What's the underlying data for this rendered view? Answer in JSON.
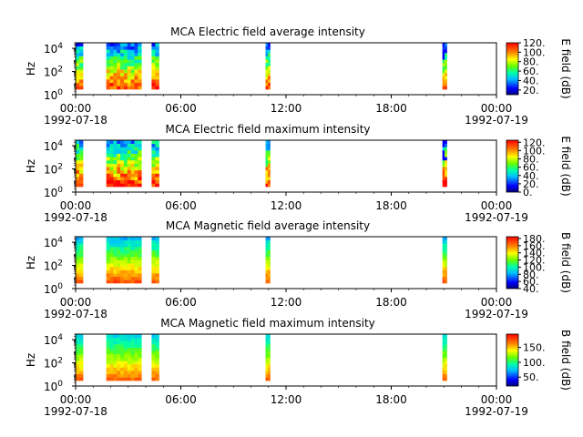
{
  "figure": {
    "time_ticks": [
      "00:00",
      "06:00",
      "12:00",
      "18:00",
      "00:00"
    ],
    "start_date": "1992-07-18",
    "end_date": "1992-07-19",
    "y_axis_label": "Hz",
    "y_tick_labels": [
      {
        "base": "10",
        "exp": "0"
      },
      {
        "base": "10",
        "exp": "2"
      },
      {
        "base": "10",
        "exp": "4"
      }
    ]
  },
  "chart_data": [
    {
      "type": "heatmap",
      "title": "MCA  Electric field average intensity",
      "ylabel": "Hz",
      "colorbar_label": "E field (dB)",
      "colorbar_ticks": [
        "20.",
        "40.",
        "60.",
        "80.",
        "100.",
        "120."
      ],
      "colorbar_range": [
        10,
        120
      ],
      "xlim": [
        "1992-07-18 00:00",
        "1992-07-19 00:00"
      ],
      "ylim": [
        1,
        30000
      ],
      "yscale": "log",
      "x_ticks": [
        "00:00",
        "06:00",
        "12:00",
        "18:00",
        "00:00"
      ],
      "active_intervals": [
        {
          "start": "00:00",
          "end": "00:25"
        },
        {
          "start": "01:45",
          "end": "03:45"
        },
        {
          "start": "04:20",
          "end": "04:45"
        },
        {
          "start": "10:50",
          "end": "11:05"
        },
        {
          "start": "20:55",
          "end": "21:10"
        }
      ]
    },
    {
      "type": "heatmap",
      "title": "MCA  Electric field maximum intensity",
      "ylabel": "Hz",
      "colorbar_label": "E field (dB)",
      "colorbar_ticks": [
        "0.",
        "20.",
        "40.",
        "60.",
        "80.",
        "100.",
        "120."
      ],
      "colorbar_range": [
        0,
        125
      ],
      "xlim": [
        "1992-07-18 00:00",
        "1992-07-19 00:00"
      ],
      "ylim": [
        1,
        30000
      ],
      "yscale": "log",
      "x_ticks": [
        "00:00",
        "06:00",
        "12:00",
        "18:00",
        "00:00"
      ],
      "active_intervals": [
        {
          "start": "00:00",
          "end": "00:25"
        },
        {
          "start": "01:45",
          "end": "03:45"
        },
        {
          "start": "04:20",
          "end": "04:45"
        },
        {
          "start": "10:50",
          "end": "11:05"
        },
        {
          "start": "20:55",
          "end": "21:10"
        }
      ]
    },
    {
      "type": "heatmap",
      "title": "MCA  Magnetic field average intensity",
      "ylabel": "Hz",
      "colorbar_label": "B field (dB)",
      "colorbar_ticks": [
        "40.",
        "60.",
        "80.",
        "100.",
        "120.",
        "140.",
        "160.",
        "180."
      ],
      "colorbar_range": [
        40,
        185
      ],
      "xlim": [
        "1992-07-18 00:00",
        "1992-07-19 00:00"
      ],
      "ylim": [
        1,
        30000
      ],
      "yscale": "log",
      "x_ticks": [
        "00:00",
        "06:00",
        "12:00",
        "18:00",
        "00:00"
      ],
      "active_intervals": [
        {
          "start": "00:00",
          "end": "00:25"
        },
        {
          "start": "01:45",
          "end": "03:45"
        },
        {
          "start": "04:20",
          "end": "04:45"
        },
        {
          "start": "10:50",
          "end": "11:05"
        },
        {
          "start": "20:55",
          "end": "21:10"
        }
      ]
    },
    {
      "type": "heatmap",
      "title": "MCA  Magnetic field maximum intensity",
      "ylabel": "Hz",
      "colorbar_label": "B field (dB)",
      "colorbar_ticks": [
        "50.",
        "100.",
        "150."
      ],
      "colorbar_range": [
        20,
        195
      ],
      "xlim": [
        "1992-07-18 00:00",
        "1992-07-19 00:00"
      ],
      "ylim": [
        1,
        30000
      ],
      "yscale": "log",
      "x_ticks": [
        "00:00",
        "06:00",
        "12:00",
        "18:00",
        "00:00"
      ],
      "active_intervals": [
        {
          "start": "00:00",
          "end": "00:25"
        },
        {
          "start": "01:45",
          "end": "03:45"
        },
        {
          "start": "04:20",
          "end": "04:45"
        },
        {
          "start": "10:50",
          "end": "11:05"
        },
        {
          "start": "20:55",
          "end": "21:10"
        }
      ]
    }
  ]
}
